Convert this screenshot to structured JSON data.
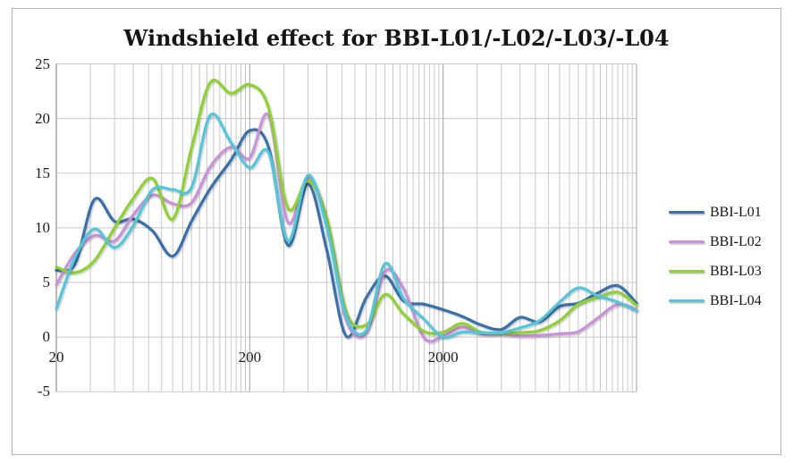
{
  "window": {
    "background": "#ffffff",
    "border_color": "#b3b3b3"
  },
  "chart_data": {
    "type": "line",
    "title": "Windshield effect for BBI-L01/-L02/-L03/-L04",
    "x_scale": "log",
    "xlim": [
      20,
      20000
    ],
    "ylim": [
      -5,
      25
    ],
    "y_ticks": [
      25,
      20,
      15,
      10,
      5,
      0,
      -5
    ],
    "x_ticks": [
      20,
      200,
      2000
    ],
    "grid": {
      "minor_color": "#c8c8c8",
      "major_color": "#a2a2a2",
      "axis_color": "#8f8f8f",
      "on": true
    },
    "legend_position": "right",
    "line_width": 3.2,
    "x": [
      20,
      25,
      31.5,
      40,
      50,
      63,
      80,
      100,
      125,
      160,
      200,
      250,
      315,
      400,
      500,
      630,
      800,
      1000,
      1250,
      1600,
      2000,
      2500,
      3150,
      4000,
      5000,
      6300,
      8000,
      10000,
      12500,
      16000,
      20000
    ],
    "series": [
      {
        "name": "BBI-L01",
        "color": "#3a6fa9",
        "values": [
          6.1,
          6.7,
          12.6,
          10.6,
          10.8,
          9.7,
          7.4,
          10.6,
          13.6,
          16.2,
          18.9,
          17.4,
          8.4,
          14.0,
          8.0,
          0.1,
          3.6,
          5.6,
          3.3,
          3.0,
          2.5,
          1.9,
          1.1,
          0.7,
          1.8,
          1.4,
          2.8,
          3.1,
          4.0,
          4.7,
          3.1
        ]
      },
      {
        "name": "BBI-L02",
        "color": "#c992d9",
        "values": [
          4.8,
          7.7,
          9.3,
          8.8,
          11.2,
          13.0,
          12.2,
          12.3,
          15.6,
          17.4,
          16.4,
          20.3,
          10.5,
          14.6,
          10.4,
          1.6,
          0.4,
          6.0,
          4.4,
          -0.1,
          0.1,
          0.9,
          0.3,
          0.3,
          0.1,
          0.15,
          0.3,
          0.5,
          1.7,
          3.0,
          2.5
        ]
      },
      {
        "name": "BBI-L03",
        "color": "#8fd136",
        "values": [
          6.4,
          5.9,
          7.0,
          10.0,
          12.7,
          14.5,
          10.8,
          17.3,
          23.3,
          22.3,
          23.1,
          21.0,
          11.8,
          14.3,
          10.9,
          2.3,
          1.1,
          3.9,
          2.1,
          0.5,
          0.45,
          1.25,
          0.45,
          0.35,
          0.4,
          0.6,
          1.5,
          3.0,
          3.6,
          4.1,
          2.9
        ]
      },
      {
        "name": "BBI-L04",
        "color": "#55c6da",
        "values": [
          2.6,
          7.3,
          9.9,
          8.2,
          10.2,
          13.5,
          13.5,
          13.7,
          20.3,
          17.8,
          15.5,
          16.9,
          8.8,
          14.8,
          10.1,
          1.9,
          0.6,
          6.7,
          3.5,
          1.6,
          0.0,
          0.45,
          0.4,
          0.4,
          0.85,
          1.5,
          3.2,
          4.5,
          3.8,
          3.2,
          2.4
        ]
      }
    ]
  }
}
